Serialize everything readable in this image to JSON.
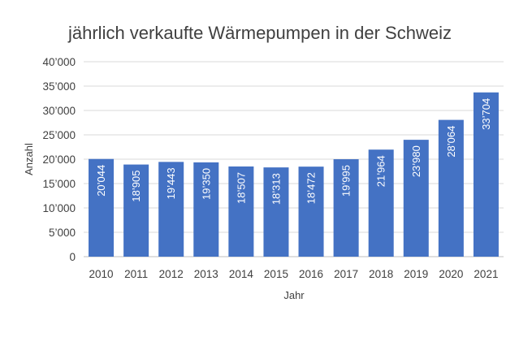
{
  "chart_data": {
    "type": "bar",
    "title": "jährlich verkaufte Wärmepumpen in der Schweiz",
    "xlabel": "Jahr",
    "ylabel": "Anzahl",
    "categories": [
      "2010",
      "2011",
      "2012",
      "2013",
      "2014",
      "2015",
      "2016",
      "2017",
      "2018",
      "2019",
      "2020",
      "2021"
    ],
    "values": [
      20044,
      18905,
      19443,
      19350,
      18507,
      18313,
      18472,
      19995,
      21964,
      23980,
      28064,
      33704
    ],
    "value_labels": [
      "20’044",
      "18’905",
      "19’443",
      "19’350",
      "18’507",
      "18’313",
      "18’472",
      "19’995",
      "21’964",
      "23’980",
      "28’064",
      "33’704"
    ],
    "ylim": [
      0,
      40000
    ],
    "y_ticks": [
      0,
      5000,
      10000,
      15000,
      20000,
      25000,
      30000,
      35000,
      40000
    ],
    "y_tick_labels": [
      "0",
      "5’000",
      "10’000",
      "15’000",
      "20’000",
      "25’000",
      "30’000",
      "35’000",
      "40’000"
    ],
    "grid": true,
    "bar_color": "#4472c4",
    "legend": "none"
  }
}
